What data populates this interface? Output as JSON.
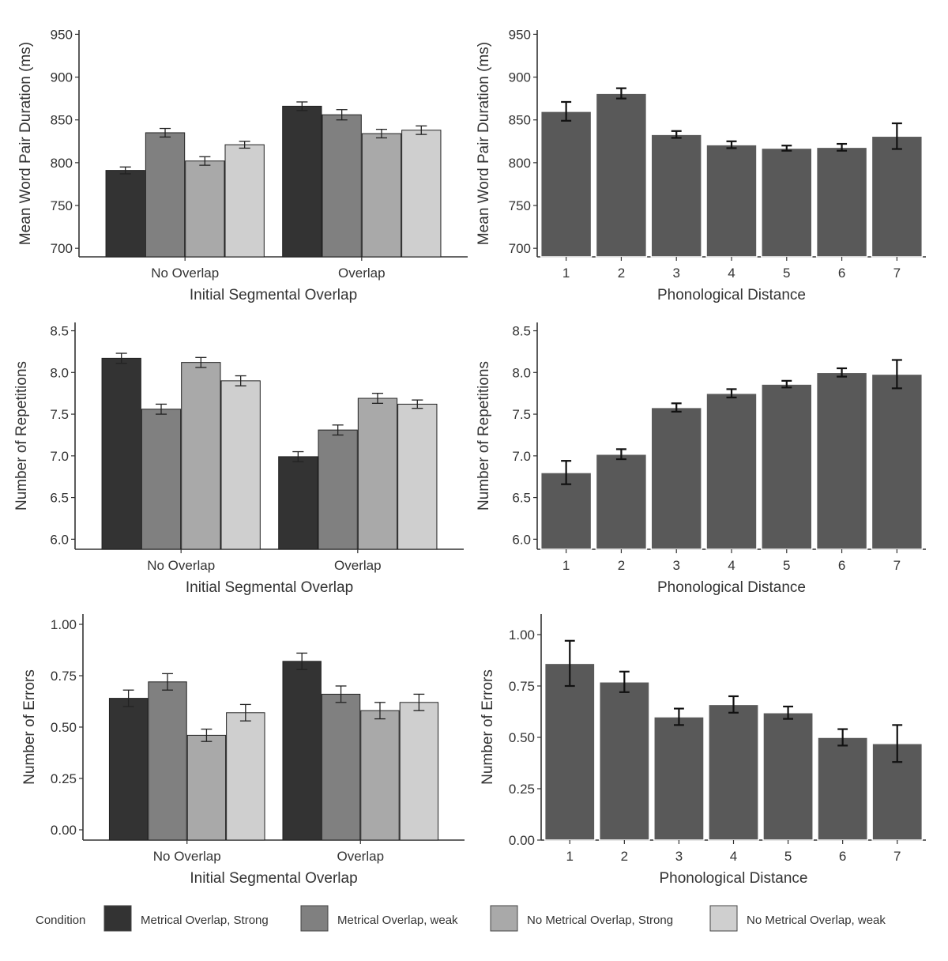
{
  "legend": {
    "title": "Condition",
    "items": [
      {
        "label": "Metrical Overlap, Strong",
        "color": "#333333"
      },
      {
        "label": "Metrical Overlap, weak",
        "color": "#808080"
      },
      {
        "label": "No Metrical Overlap, Strong",
        "color": "#a9a9a9"
      },
      {
        "label": "No Metrical Overlap, weak",
        "color": "#cfcfcf"
      }
    ]
  },
  "chart_data": [
    {
      "type": "bar",
      "xlabel": "Initial Segmental Overlap",
      "ylabel": "Mean Word Pair Duration (ms)",
      "categories": [
        "No Overlap",
        "Overlap"
      ],
      "ylim": [
        690,
        955
      ],
      "yticks": [
        "700",
        "750",
        "800",
        "850",
        "900",
        "950"
      ],
      "series": [
        {
          "name": "Metrical Overlap, Strong",
          "values": [
            791,
            866
          ],
          "err": [
            4,
            5
          ]
        },
        {
          "name": "Metrical Overlap, weak",
          "values": [
            835,
            856
          ],
          "err": [
            5,
            6
          ]
        },
        {
          "name": "No Metrical Overlap, Strong",
          "values": [
            802,
            834
          ],
          "err": [
            5,
            5
          ]
        },
        {
          "name": "No Metrical Overlap, weak",
          "values": [
            821,
            838
          ],
          "err": [
            4,
            5
          ]
        }
      ]
    },
    {
      "type": "bar",
      "xlabel": "Phonological Distance",
      "ylabel": "Mean Word Pair Duration (ms)",
      "categories": [
        "1",
        "2",
        "3",
        "4",
        "5",
        "6",
        "7"
      ],
      "ylim": [
        690,
        955
      ],
      "yticks": [
        "700",
        "750",
        "800",
        "850",
        "900",
        "950"
      ],
      "series": [
        {
          "values": [
            860,
            881,
            833,
            821,
            817,
            818,
            831
          ],
          "err": [
            11,
            6,
            4,
            4,
            3,
            4,
            15
          ]
        }
      ]
    },
    {
      "type": "bar",
      "xlabel": "Initial Segmental Overlap",
      "ylabel": "Number of Repetitions",
      "categories": [
        "No Overlap",
        "Overlap"
      ],
      "ylim": [
        5.88,
        8.6
      ],
      "yticks": [
        "6.0",
        "6.5",
        "7.0",
        "7.5",
        "8.0",
        "8.5"
      ],
      "series": [
        {
          "name": "Metrical Overlap, Strong",
          "values": [
            8.17,
            6.99
          ],
          "err": [
            0.06,
            0.06
          ]
        },
        {
          "name": "Metrical Overlap, weak",
          "values": [
            7.56,
            7.31
          ],
          "err": [
            0.06,
            0.06
          ]
        },
        {
          "name": "No Metrical Overlap, Strong",
          "values": [
            8.12,
            7.69
          ],
          "err": [
            0.06,
            0.06
          ]
        },
        {
          "name": "No Metrical Overlap, weak",
          "values": [
            7.9,
            7.62
          ],
          "err": [
            0.06,
            0.05
          ]
        }
      ]
    },
    {
      "type": "bar",
      "xlabel": "Phonological Distance",
      "ylabel": "Number of Repetitions",
      "categories": [
        "1",
        "2",
        "3",
        "4",
        "5",
        "6",
        "7"
      ],
      "ylim": [
        5.88,
        8.6
      ],
      "yticks": [
        "6.0",
        "6.5",
        "7.0",
        "7.5",
        "8.0",
        "8.5"
      ],
      "series": [
        {
          "values": [
            6.8,
            7.02,
            7.58,
            7.75,
            7.86,
            8.0,
            7.98
          ],
          "err": [
            0.14,
            0.06,
            0.05,
            0.05,
            0.04,
            0.05,
            0.17
          ]
        }
      ]
    },
    {
      "type": "bar",
      "xlabel": "Initial Segmental Overlap",
      "ylabel": "Number of Errors",
      "categories": [
        "No Overlap",
        "Overlap"
      ],
      "ylim": [
        -0.05,
        1.05
      ],
      "yticks": [
        "0.00",
        "0.25",
        "0.50",
        "0.75",
        "1.00"
      ],
      "series": [
        {
          "name": "Metrical Overlap, Strong",
          "values": [
            0.64,
            0.82
          ],
          "err": [
            0.04,
            0.04
          ]
        },
        {
          "name": "Metrical Overlap, weak",
          "values": [
            0.72,
            0.66
          ],
          "err": [
            0.04,
            0.04
          ]
        },
        {
          "name": "No Metrical Overlap, Strong",
          "values": [
            0.46,
            0.58
          ],
          "err": [
            0.03,
            0.04
          ]
        },
        {
          "name": "No Metrical Overlap, weak",
          "values": [
            0.57,
            0.62
          ],
          "err": [
            0.04,
            0.04
          ]
        }
      ]
    },
    {
      "type": "bar",
      "xlabel": "Phonological Distance",
      "ylabel": "Number of Errors",
      "categories": [
        "1",
        "2",
        "3",
        "4",
        "5",
        "6",
        "7"
      ],
      "ylim": [
        0,
        1.1
      ],
      "yticks": [
        "0.00",
        "0.25",
        "0.50",
        "0.75",
        "1.00"
      ],
      "series": [
        {
          "values": [
            0.86,
            0.77,
            0.6,
            0.66,
            0.62,
            0.5,
            0.47
          ],
          "err": [
            0.11,
            0.05,
            0.04,
            0.04,
            0.03,
            0.04,
            0.09
          ]
        }
      ]
    }
  ]
}
